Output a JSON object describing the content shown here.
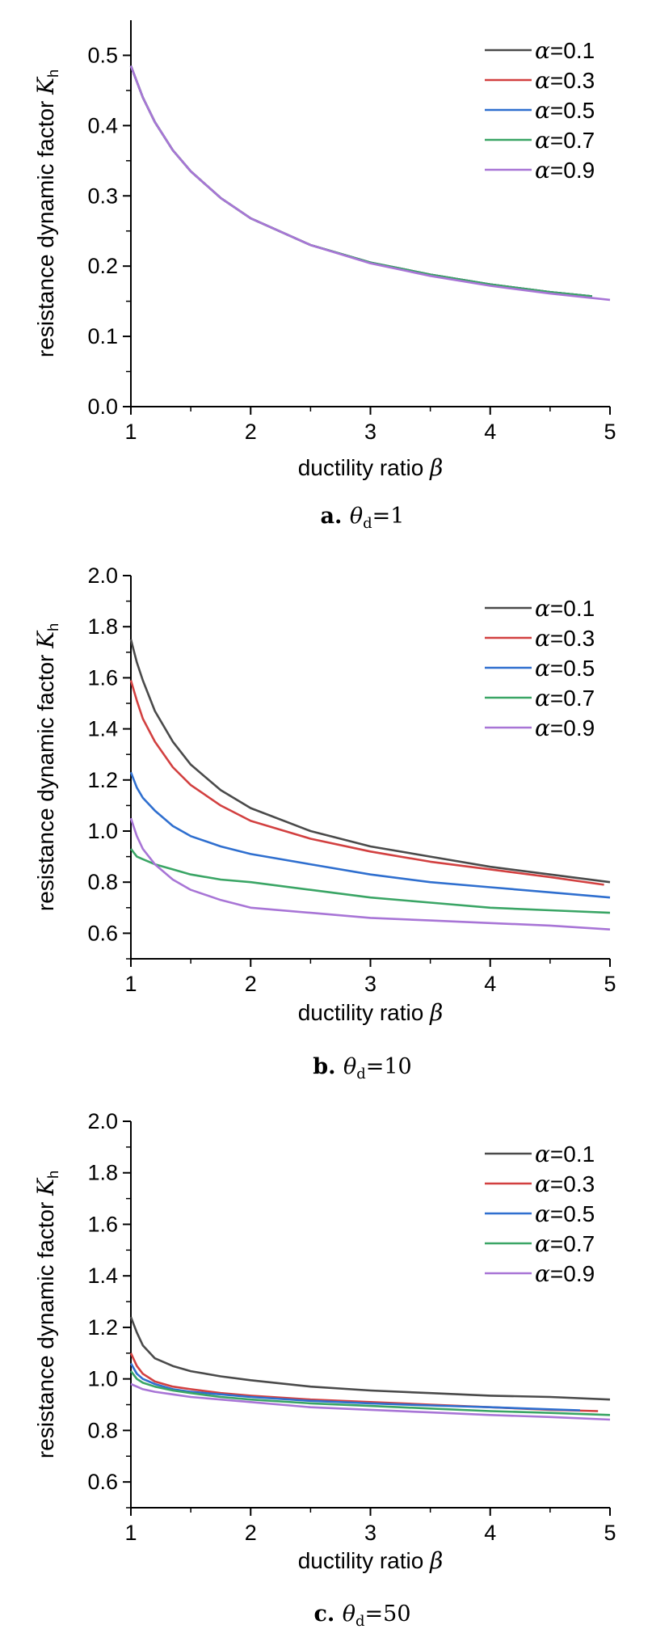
{
  "chart_data": [
    {
      "type": "line",
      "caption": {
        "letter": "a.",
        "symbol": "θ",
        "sub": "d",
        "value": "=1"
      },
      "xlabel": "ductility ratio β",
      "ylabel": "resistance dynamic factor K",
      "ylabel_sub": "h",
      "xlim": [
        1,
        5
      ],
      "ylim": [
        0,
        0.55
      ],
      "xticks": [
        "1",
        "2",
        "3",
        "4",
        "5"
      ],
      "yticks": [
        "0.0",
        "0.1",
        "0.2",
        "0.3",
        "0.4",
        "0.5"
      ],
      "legend": "top-right",
      "series": [
        {
          "name": "α=0.1",
          "color": "#4a4a4a",
          "x": [
            1,
            1.1,
            1.2,
            1.35,
            1.5,
            1.75,
            2,
            2.5,
            3,
            3.5,
            4,
            4.5,
            4.85
          ],
          "values": [
            0.485,
            0.44,
            0.405,
            0.365,
            0.335,
            0.297,
            0.268,
            0.23,
            0.205,
            0.188,
            0.174,
            0.163,
            0.157
          ]
        },
        {
          "name": "α=0.3",
          "color": "#d24040",
          "x": [
            1,
            1.1,
            1.2,
            1.35,
            1.5,
            1.75,
            2,
            2.5,
            3,
            3.5,
            4,
            4.5,
            4.85
          ],
          "values": [
            0.485,
            0.44,
            0.405,
            0.365,
            0.335,
            0.297,
            0.268,
            0.23,
            0.205,
            0.188,
            0.174,
            0.163,
            0.157
          ]
        },
        {
          "name": "α=0.5",
          "color": "#2f6fcf",
          "x": [
            1,
            1.1,
            1.2,
            1.35,
            1.5,
            1.75,
            2,
            2.5,
            3,
            3.5,
            4,
            4.5,
            4.85
          ],
          "values": [
            0.485,
            0.44,
            0.405,
            0.365,
            0.335,
            0.297,
            0.268,
            0.23,
            0.205,
            0.188,
            0.174,
            0.163,
            0.157
          ]
        },
        {
          "name": "α=0.7",
          "color": "#3aa565",
          "x": [
            1,
            1.1,
            1.2,
            1.35,
            1.5,
            1.75,
            2,
            2.5,
            3,
            3.5,
            4,
            4.5,
            4.85
          ],
          "values": [
            0.485,
            0.44,
            0.405,
            0.365,
            0.335,
            0.297,
            0.268,
            0.23,
            0.205,
            0.188,
            0.174,
            0.163,
            0.157
          ]
        },
        {
          "name": "α=0.9",
          "color": "#a875d6",
          "x": [
            1,
            1.1,
            1.2,
            1.35,
            1.5,
            1.75,
            2,
            2.5,
            3,
            3.5,
            4,
            4.5,
            5
          ],
          "values": [
            0.485,
            0.44,
            0.405,
            0.365,
            0.335,
            0.297,
            0.268,
            0.23,
            0.204,
            0.186,
            0.172,
            0.161,
            0.152
          ]
        }
      ]
    },
    {
      "type": "line",
      "caption": {
        "letter": "b.",
        "symbol": "θ",
        "sub": "d",
        "value": "=10"
      },
      "xlabel": "ductility ratio β",
      "ylabel": "resistance dynamic factor K",
      "ylabel_sub": "h",
      "xlim": [
        1,
        5
      ],
      "ylim": [
        0.5,
        2.0
      ],
      "xticks": [
        "1",
        "2",
        "3",
        "4",
        "5"
      ],
      "yticks": [
        "0.6",
        "0.8",
        "1.0",
        "1.2",
        "1.4",
        "1.6",
        "1.8",
        "2.0"
      ],
      "legend": "top-right",
      "series": [
        {
          "name": "α=0.1",
          "color": "#4a4a4a",
          "x": [
            1,
            1.05,
            1.1,
            1.2,
            1.35,
            1.5,
            1.75,
            2,
            2.5,
            3,
            3.5,
            4,
            4.5,
            5
          ],
          "values": [
            1.75,
            1.66,
            1.59,
            1.47,
            1.35,
            1.26,
            1.16,
            1.09,
            1.0,
            0.94,
            0.9,
            0.86,
            0.83,
            0.8
          ]
        },
        {
          "name": "α=0.3",
          "color": "#d24040",
          "x": [
            1,
            1.05,
            1.1,
            1.2,
            1.35,
            1.5,
            1.75,
            2,
            2.5,
            3,
            3.5,
            4,
            4.5,
            4.95
          ],
          "values": [
            1.59,
            1.51,
            1.44,
            1.35,
            1.25,
            1.18,
            1.1,
            1.04,
            0.97,
            0.92,
            0.88,
            0.85,
            0.82,
            0.79
          ]
        },
        {
          "name": "α=0.5",
          "color": "#2f6fcf",
          "x": [
            1,
            1.05,
            1.1,
            1.2,
            1.35,
            1.5,
            1.75,
            2,
            2.5,
            3,
            3.5,
            4,
            4.5,
            5
          ],
          "values": [
            1.23,
            1.17,
            1.13,
            1.08,
            1.02,
            0.98,
            0.94,
            0.91,
            0.87,
            0.83,
            0.8,
            0.78,
            0.76,
            0.74
          ]
        },
        {
          "name": "α=0.7",
          "color": "#3aa565",
          "x": [
            1,
            1.05,
            1.1,
            1.2,
            1.35,
            1.5,
            1.75,
            2,
            2.5,
            3,
            3.5,
            4,
            4.5,
            5
          ],
          "values": [
            0.93,
            0.9,
            0.89,
            0.87,
            0.85,
            0.83,
            0.81,
            0.8,
            0.77,
            0.74,
            0.72,
            0.7,
            0.69,
            0.68
          ]
        },
        {
          "name": "α=0.9",
          "color": "#a875d6",
          "x": [
            1,
            1.05,
            1.1,
            1.2,
            1.35,
            1.5,
            1.75,
            2,
            2.5,
            3,
            3.5,
            4,
            4.5,
            5
          ],
          "values": [
            1.05,
            0.98,
            0.93,
            0.87,
            0.81,
            0.77,
            0.73,
            0.7,
            0.68,
            0.66,
            0.65,
            0.64,
            0.63,
            0.615
          ]
        }
      ]
    },
    {
      "type": "line",
      "caption": {
        "letter": "c.",
        "symbol": "θ",
        "sub": "d",
        "value": "=50"
      },
      "xlabel": "ductility ratio β",
      "ylabel": "resistance dynamic factor K",
      "ylabel_sub": "h",
      "xlim": [
        1,
        5
      ],
      "ylim": [
        0.5,
        2.0
      ],
      "xticks": [
        "1",
        "2",
        "3",
        "4",
        "5"
      ],
      "yticks": [
        "0.6",
        "0.8",
        "1.0",
        "1.2",
        "1.4",
        "1.6",
        "1.8",
        "2.0"
      ],
      "legend": "top-right",
      "series": [
        {
          "name": "α=0.1",
          "color": "#4a4a4a",
          "x": [
            1,
            1.05,
            1.1,
            1.2,
            1.35,
            1.5,
            1.75,
            2,
            2.5,
            3,
            3.5,
            4,
            4.5,
            5
          ],
          "values": [
            1.24,
            1.18,
            1.13,
            1.08,
            1.05,
            1.03,
            1.01,
            0.995,
            0.97,
            0.955,
            0.945,
            0.935,
            0.93,
            0.92
          ]
        },
        {
          "name": "α=0.3",
          "color": "#d24040",
          "x": [
            1,
            1.05,
            1.1,
            1.2,
            1.35,
            1.5,
            1.75,
            2,
            2.5,
            3,
            3.5,
            4,
            4.5,
            4.9
          ],
          "values": [
            1.1,
            1.05,
            1.02,
            0.99,
            0.97,
            0.96,
            0.945,
            0.935,
            0.92,
            0.91,
            0.9,
            0.89,
            0.88,
            0.875
          ]
        },
        {
          "name": "α=0.5",
          "color": "#2f6fcf",
          "x": [
            1,
            1.05,
            1.1,
            1.2,
            1.35,
            1.5,
            1.75,
            2,
            2.5,
            3,
            3.5,
            4,
            4.5,
            4.75
          ],
          "values": [
            1.06,
            1.02,
            1.0,
            0.98,
            0.96,
            0.95,
            0.94,
            0.93,
            0.915,
            0.905,
            0.897,
            0.89,
            0.882,
            0.878
          ]
        },
        {
          "name": "α=0.7",
          "color": "#3aa565",
          "x": [
            1,
            1.05,
            1.1,
            1.2,
            1.35,
            1.5,
            1.75,
            2,
            2.5,
            3,
            3.5,
            4,
            4.5,
            5
          ],
          "values": [
            1.03,
            1.0,
            0.985,
            0.97,
            0.955,
            0.945,
            0.93,
            0.92,
            0.905,
            0.895,
            0.885,
            0.875,
            0.868,
            0.86
          ]
        },
        {
          "name": "α=0.9",
          "color": "#a875d6",
          "x": [
            1,
            1.05,
            1.1,
            1.2,
            1.35,
            1.5,
            1.75,
            2,
            2.5,
            3,
            3.5,
            4,
            4.5,
            5
          ],
          "values": [
            0.98,
            0.97,
            0.96,
            0.95,
            0.94,
            0.93,
            0.92,
            0.91,
            0.89,
            0.88,
            0.87,
            0.86,
            0.852,
            0.842
          ]
        }
      ]
    }
  ]
}
